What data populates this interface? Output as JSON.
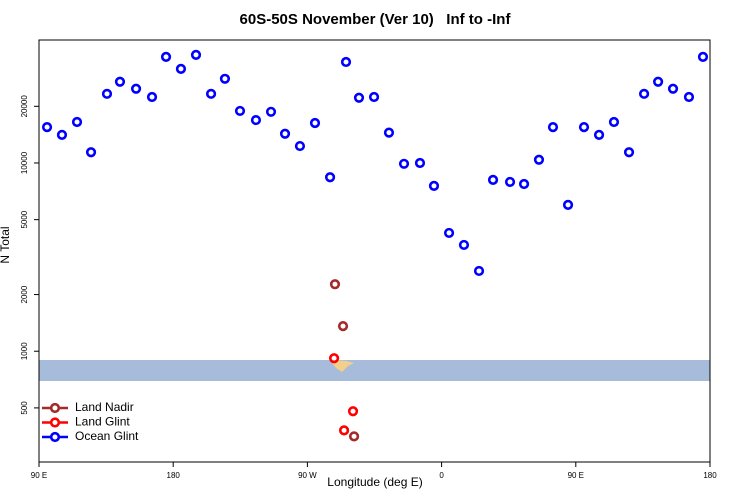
{
  "chart_data": {
    "type": "scatter",
    "title": "60S-50S November (Ver 10)   Inf to -Inf",
    "x_label": "Longitude (deg E)",
    "y_label": "N Total",
    "log_y": true,
    "legend_position": "bottom-left",
    "xlim": [
      90,
      540
    ],
    "xticks": [
      {
        "value": 90,
        "label": "90 E"
      },
      {
        "value": 180,
        "label": "180"
      },
      {
        "value": 270,
        "label": "90 W"
      },
      {
        "value": 360,
        "label": "0"
      },
      {
        "value": 450,
        "label": "90 E"
      },
      {
        "value": 540,
        "label": "180"
      }
    ],
    "ylim": [
      258,
      45000
    ],
    "yticks": [
      500,
      1000,
      2000,
      5000,
      10000,
      20000
    ],
    "series": [
      {
        "name": "Land Nadir",
        "color": "#a52a2a",
        "x": [
          288.5,
          293.9,
          301.3
        ],
        "values": [
          2270,
          1360,
          353
        ]
      },
      {
        "name": "Land Glint",
        "color": "#ff0000",
        "x": [
          287.9,
          300.6,
          294.6
        ],
        "values": [
          918,
          480,
          380
        ]
      },
      {
        "name": "Ocean Glint",
        "color": "#0000ff",
        "x": [
          95.4,
          105.4,
          115.5,
          124.9,
          135.6,
          144.3,
          155.1,
          165.8,
          175.2,
          185.2,
          195.3,
          205.4,
          214.7,
          224.8,
          235.5,
          245.6,
          255.0,
          265.0,
          275.1,
          285.2,
          295.9,
          304.6,
          314.7,
          324.7,
          334.8,
          345.5,
          354.9,
          365.0,
          375.0,
          385.1,
          394.5,
          405.9,
          415.3,
          425.3,
          434.7,
          444.8,
          455.5,
          465.6,
          475.6,
          485.7,
          495.8,
          505.2,
          515.2,
          525.9,
          535.3
        ],
        "values": [
          15500,
          14100,
          16500,
          11400,
          23300,
          27000,
          24800,
          22400,
          36600,
          31600,
          37500,
          23300,
          28000,
          18900,
          16900,
          18700,
          14300,
          12300,
          16300,
          8400,
          34400,
          22200,
          22400,
          14500,
          9900,
          10000,
          7560,
          4250,
          3670,
          2670,
          8130,
          7930,
          7730,
          10400,
          15500,
          5990,
          15500,
          14100,
          16500,
          11400,
          23300,
          27000,
          24800,
          22400,
          36600
        ]
      }
    ]
  }
}
